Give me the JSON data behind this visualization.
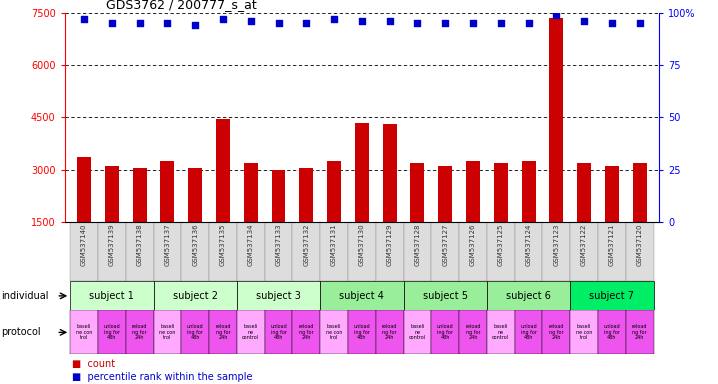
{
  "title": "GDS3762 / 200777_s_at",
  "samples": [
    "GSM537140",
    "GSM537139",
    "GSM537138",
    "GSM537137",
    "GSM537136",
    "GSM537135",
    "GSM537134",
    "GSM537133",
    "GSM537132",
    "GSM537131",
    "GSM537130",
    "GSM537129",
    "GSM537128",
    "GSM537127",
    "GSM537126",
    "GSM537125",
    "GSM537124",
    "GSM537123",
    "GSM537122",
    "GSM537121",
    "GSM537120"
  ],
  "counts": [
    3350,
    3100,
    3050,
    3250,
    3050,
    4450,
    3200,
    2980,
    3050,
    3250,
    4350,
    4300,
    3200,
    3100,
    3250,
    3200,
    3250,
    7350,
    3200,
    3100,
    3200
  ],
  "percentile_pct": [
    97,
    95,
    95,
    95,
    94,
    97,
    96,
    95,
    95,
    97,
    96,
    96,
    95,
    95,
    95,
    95,
    95,
    99,
    96,
    95,
    95
  ],
  "ylim_left": [
    1500,
    7500
  ],
  "yticks_left": [
    1500,
    3000,
    4500,
    6000,
    7500
  ],
  "ylim_right": [
    0,
    100
  ],
  "yticks_right": [
    0,
    25,
    50,
    75,
    100
  ],
  "bar_color": "#cc0000",
  "dot_color": "#0000cc",
  "subjects": [
    {
      "label": "subject 1",
      "start": 0,
      "end": 2,
      "color": "#ccffcc"
    },
    {
      "label": "subject 2",
      "start": 3,
      "end": 5,
      "color": "#ccffcc"
    },
    {
      "label": "subject 3",
      "start": 6,
      "end": 8,
      "color": "#ccffcc"
    },
    {
      "label": "subject 4",
      "start": 9,
      "end": 11,
      "color": "#99ee99"
    },
    {
      "label": "subject 5",
      "start": 12,
      "end": 14,
      "color": "#99ee99"
    },
    {
      "label": "subject 6",
      "start": 15,
      "end": 17,
      "color": "#99ee99"
    },
    {
      "label": "subject 7",
      "start": 18,
      "end": 20,
      "color": "#00ee66"
    }
  ],
  "protocol_colors": [
    "#ffaaff",
    "#ee55ee",
    "#ee55ee",
    "#ffaaff",
    "#ee55ee",
    "#ee55ee",
    "#ffaaff",
    "#ee55ee",
    "#ee55ee",
    "#ffaaff",
    "#ee55ee",
    "#ee55ee",
    "#ffaaff",
    "#ee55ee",
    "#ee55ee",
    "#ffaaff",
    "#ee55ee",
    "#ee55ee",
    "#ffaaff",
    "#ee55ee",
    "#ee55ee"
  ],
  "protocol_labels": [
    "baseli\nne con\ntrol",
    "unload\ning for\n48h",
    "reload\nng for\n24h",
    "baseli\nne con\ntrol",
    "unload\ning for\n48h",
    "reload\nng for\n24h",
    "baseli\nne\ncontrol",
    "unload\ning for\n48h",
    "reload\nng for\n24h",
    "baseli\nne con\ntrol",
    "unload\ning for\n48h",
    "reload\nng for\n24h",
    "baseli\nne\ncontrol",
    "unload\ning for\n48h",
    "reload\nng for\n24h",
    "baseli\nne\ncontrol",
    "unload\ning for\n48h",
    "reload\nng for\n24h",
    "baseli\nne con\ntrol",
    "unload\ning for\n48h",
    "reload\nng for\n24h"
  ],
  "xtick_bg": "#dddddd",
  "legend_count_color": "#cc0000",
  "legend_pct_color": "#0000cc"
}
